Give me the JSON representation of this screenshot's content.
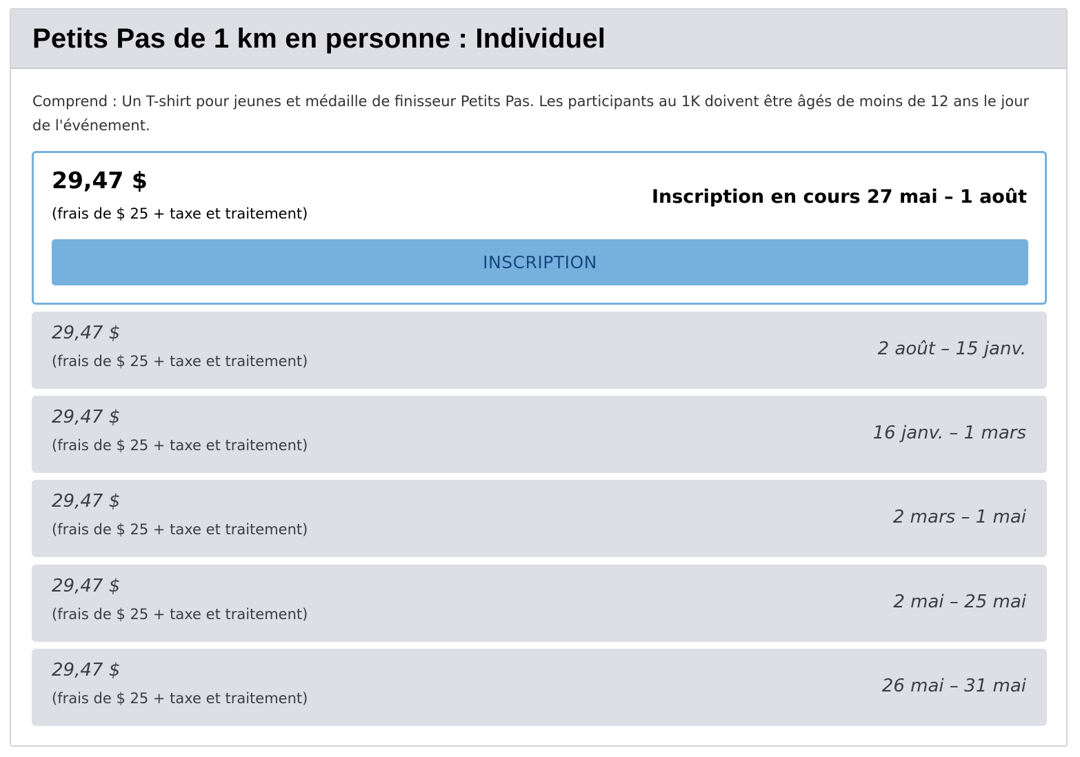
{
  "event": {
    "title": "Petits Pas de 1 km en personne : Individuel",
    "description": "Comprend : Un T-shirt pour jeunes et médaille de finisseur Petits Pas. Les participants au 1K doivent être âgés de moins de 12 ans le jour de l'événement."
  },
  "active_tier": {
    "price": "29,47 $",
    "fee": "(frais de $ 25 + taxe et traitement)",
    "status": "Inscription en cours 27 mai – 1 août",
    "button_label": "INSCRIPTION"
  },
  "tiers": [
    {
      "price": "29,47 $",
      "fee": "(frais de $ 25 + taxe et traitement)",
      "dates": "2 août – 15 janv."
    },
    {
      "price": "29,47 $",
      "fee": "(frais de $ 25 + taxe et traitement)",
      "dates": "16 janv. – 1 mars"
    },
    {
      "price": "29,47 $",
      "fee": "(frais de $ 25 + taxe et traitement)",
      "dates": "2 mars – 1 mai"
    },
    {
      "price": "29,47 $",
      "fee": "(frais de $ 25 + taxe et traitement)",
      "dates": "2 mai – 25 mai"
    },
    {
      "price": "29,47 $",
      "fee": "(frais de $ 25 + taxe et traitement)",
      "dates": "26 mai – 31 mai"
    }
  ],
  "colors": {
    "accent": "#76b1de",
    "button_text": "#144a82",
    "header_bg": "#dedee5",
    "tier_bg": "#dedee5"
  }
}
